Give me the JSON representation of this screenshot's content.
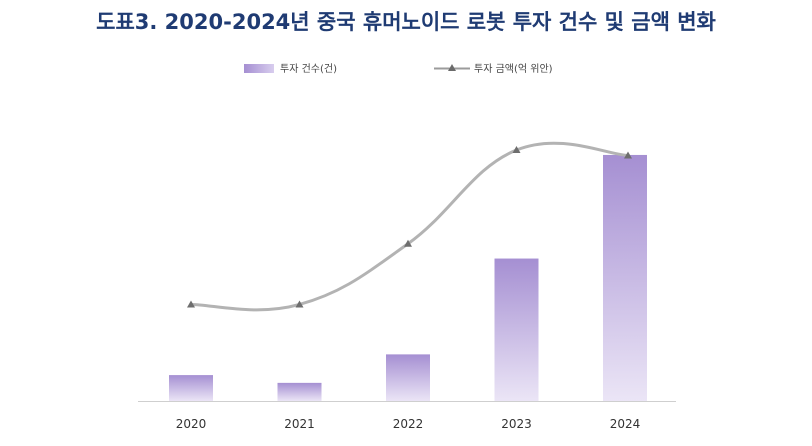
{
  "title": "도표3. 2020-2024년 중국 휴머노이드 로봇 투자 건수 및 금액 변화",
  "chart_data": {
    "type": "bar",
    "categories": [
      "2020",
      "2021",
      "2022",
      "2023",
      "2024"
    ],
    "series": [
      {
        "name": "투자 건수(건)",
        "type": "bar",
        "values": [
          10,
          7,
          18,
          55,
          95
        ],
        "color": "#a58fd2"
      },
      {
        "name": "투자 금액(억 위안)",
        "type": "line",
        "values": [
          35,
          35,
          57,
          91,
          89
        ],
        "color": "#a8a8a8"
      }
    ],
    "ylim_bars": [
      0,
      100
    ],
    "ylim_line": [
      0,
      100
    ],
    "legend": "top-center",
    "grid": false
  }
}
